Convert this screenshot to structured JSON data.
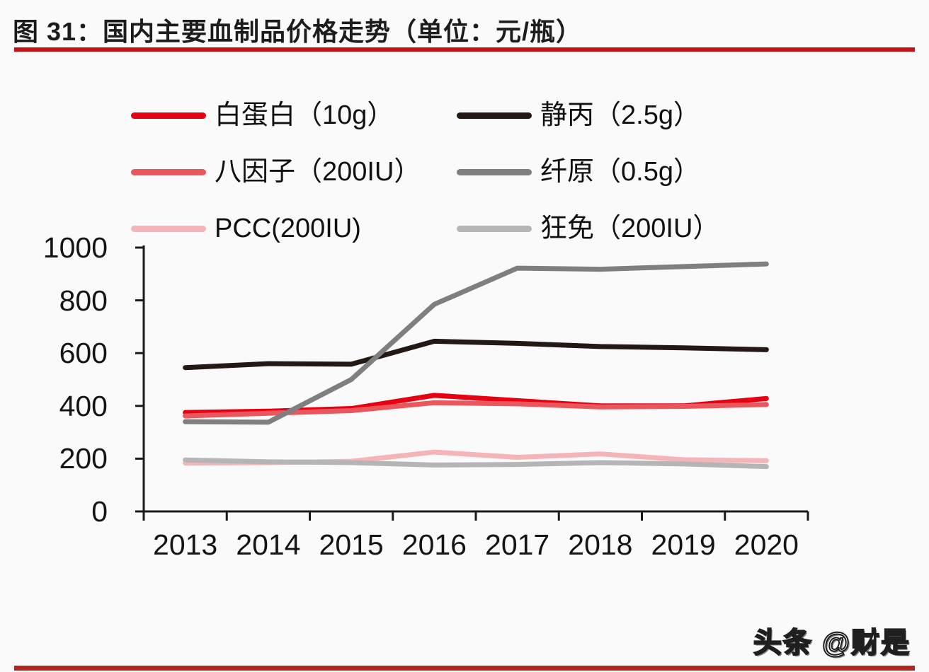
{
  "title": "图 31：国内主要血制品价格走势（单位：元/瓶）",
  "watermark": "头条 @财是",
  "colors": {
    "background": "#fbfafa",
    "rule_top": "#c81016",
    "rule_bottom": "#b22622",
    "axis": "#1a1a1a",
    "label_text": "#141414"
  },
  "chart_data": {
    "type": "line",
    "title": "国内主要血制品价格走势",
    "unit": "元/瓶",
    "categories": [
      "2013",
      "2014",
      "2015",
      "2016",
      "2017",
      "2018",
      "2019",
      "2020"
    ],
    "series": [
      {
        "name": "白蛋白（10g）",
        "color": "#e60012",
        "values": [
          375,
          380,
          390,
          440,
          420,
          400,
          400,
          428
        ]
      },
      {
        "name": "静丙（2.5g）",
        "color": "#241814",
        "values": [
          545,
          560,
          558,
          645,
          637,
          625,
          620,
          613
        ]
      },
      {
        "name": "八因子（200IU）",
        "color": "#e9565c",
        "values": [
          362,
          372,
          382,
          412,
          408,
          396,
          398,
          405
        ]
      },
      {
        "name": "纤原（0.5g）",
        "color": "#7f7f7f",
        "values": [
          340,
          338,
          500,
          785,
          922,
          918,
          928,
          938
        ]
      },
      {
        "name": "PCC(200IU)",
        "color": "#f5b5b8",
        "values": [
          183,
          185,
          190,
          225,
          205,
          218,
          196,
          192
        ]
      },
      {
        "name": "狂免（200IU）",
        "color": "#b5b5b7",
        "values": [
          195,
          188,
          185,
          176,
          178,
          185,
          180,
          170
        ]
      }
    ],
    "ylim": [
      0,
      1000
    ],
    "y_ticks": [
      0,
      200,
      400,
      600,
      800,
      1000
    ],
    "xlabel": "",
    "ylabel": "",
    "grid": false,
    "legend_position": "top-left",
    "line_width": 7
  }
}
